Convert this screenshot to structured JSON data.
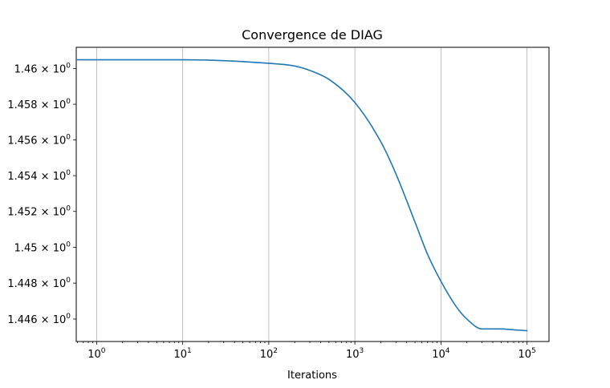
{
  "chart_data": {
    "type": "line",
    "title": "Convergence de DIAG",
    "xlabel": "Iterations",
    "ylabel": "",
    "x_scale": "log",
    "y_scale": "log",
    "xlim": [
      0.58,
      180000
    ],
    "ylim": [
      1.44475,
      1.4612
    ],
    "grid": {
      "x": true,
      "y": false
    },
    "colors": {
      "series": "#1f77b4",
      "grid": "#b0b0b0"
    },
    "x_ticks": [
      {
        "value": 1,
        "label": "10^0",
        "base": "10",
        "exp": "0"
      },
      {
        "value": 10,
        "label": "10^1",
        "base": "10",
        "exp": "1"
      },
      {
        "value": 100,
        "label": "10^2",
        "base": "10",
        "exp": "2"
      },
      {
        "value": 1000,
        "label": "10^3",
        "base": "10",
        "exp": "3"
      },
      {
        "value": 10000,
        "label": "10^4",
        "base": "10",
        "exp": "4"
      },
      {
        "value": 100000,
        "label": "10^5",
        "base": "10",
        "exp": "5"
      }
    ],
    "y_ticks": [
      {
        "value": 1.446,
        "label": "1.446 × 10^0",
        "mantissa": "1.446",
        "base": "10",
        "exp": "0"
      },
      {
        "value": 1.448,
        "label": "1.448 × 10^0",
        "mantissa": "1.448",
        "base": "10",
        "exp": "0"
      },
      {
        "value": 1.45,
        "label": "1.45 × 10^0",
        "mantissa": "1.45",
        "base": "10",
        "exp": "0"
      },
      {
        "value": 1.452,
        "label": "1.452 × 10^0",
        "mantissa": "1.452",
        "base": "10",
        "exp": "0"
      },
      {
        "value": 1.454,
        "label": "1.454 × 10^0",
        "mantissa": "1.454",
        "base": "10",
        "exp": "0"
      },
      {
        "value": 1.456,
        "label": "1.456 × 10^0",
        "mantissa": "1.456",
        "base": "10",
        "exp": "0"
      },
      {
        "value": 1.458,
        "label": "1.458 × 10^0",
        "mantissa": "1.458",
        "base": "10",
        "exp": "0"
      },
      {
        "value": 1.46,
        "label": "1.46 × 10^0",
        "mantissa": "1.46",
        "base": "10",
        "exp": "0"
      }
    ],
    "series": [
      {
        "x": [
          0.6,
          1,
          3,
          10,
          30,
          100,
          200,
          300,
          500,
          1000,
          2000,
          3000,
          5000,
          7000,
          10000,
          15000,
          20000,
          30000,
          50000,
          70000,
          100000
        ],
        "y": [
          1.4605,
          1.4605,
          1.4605,
          1.4605,
          1.46045,
          1.4603,
          1.46015,
          1.4599,
          1.4594,
          1.4581,
          1.4559,
          1.4541,
          1.4514,
          1.4496,
          1.4481,
          1.4467,
          1.446,
          1.44545,
          1.44545,
          1.4454,
          1.44535
        ]
      }
    ]
  }
}
